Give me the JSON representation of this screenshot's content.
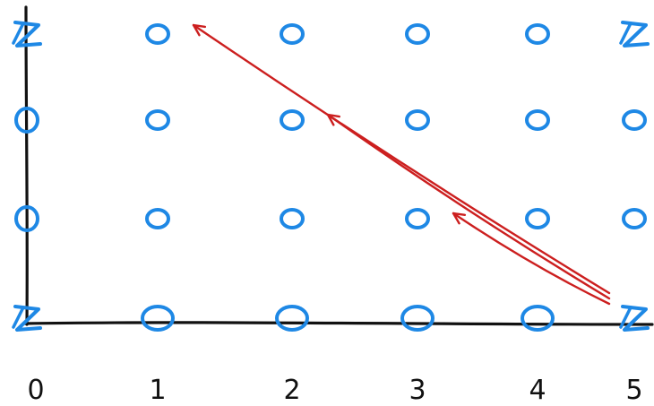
{
  "axis": {
    "x_labels": [
      "0",
      "1",
      "2",
      "3",
      "4",
      "5"
    ]
  },
  "grid": {
    "columns": 6,
    "rows": 4,
    "cells": [
      [
        "Z",
        "o",
        "o",
        "o",
        "o",
        "Z"
      ],
      [
        "o",
        "o",
        "o",
        "o",
        "o",
        "o"
      ],
      [
        "o",
        "o",
        "o",
        "o",
        "o",
        "o"
      ],
      [
        "Z",
        "o",
        "o",
        "o",
        "o",
        "Z"
      ]
    ]
  },
  "arrows": [
    {
      "from": [
        5,
        0
      ],
      "to": [
        1,
        3
      ]
    },
    {
      "from": [
        5,
        0
      ],
      "to": [
        2,
        2
      ]
    },
    {
      "from": [
        5,
        0
      ],
      "to": [
        3,
        1
      ]
    }
  ],
  "colors": {
    "node": "#1e88e5",
    "arrow": "#cc1f1f",
    "axis": "#111111"
  },
  "icons": {
    "node": "circle-node-icon",
    "special": "z-mark-icon"
  }
}
